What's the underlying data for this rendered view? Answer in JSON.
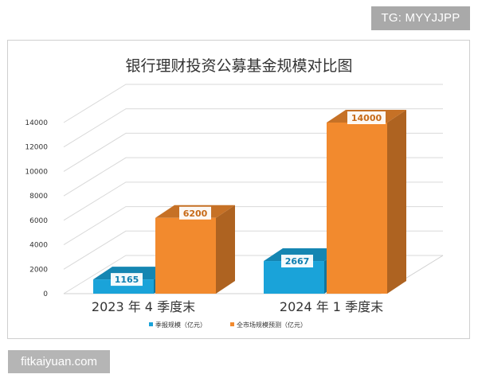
{
  "watermarks": {
    "top": "TG: MYYJJPP",
    "bottom": "fitkaiyuan.com"
  },
  "chart_data": {
    "type": "bar",
    "title": "银行理财投资公募基金规模对比图",
    "categories": [
      "2023 年 4 季度末",
      "2024 年 1 季度末"
    ],
    "series": [
      {
        "name": "季报规模（亿元）",
        "values": [
          1165,
          2667
        ],
        "color": "#1aa3d9",
        "label_color": "#0f7fb0"
      },
      {
        "name": "全市场规模预测（亿元）",
        "values": [
          6200,
          14000
        ],
        "color": "#f28a2e",
        "label_color": "#c76a18"
      }
    ],
    "data_labels": [
      [
        "1165",
        "6200"
      ],
      [
        "2667",
        "14000"
      ]
    ],
    "ylim": [
      0,
      14000
    ],
    "yticks": [
      0,
      2000,
      4000,
      6000,
      8000,
      10000,
      12000,
      14000
    ],
    "ytick_labels": [
      "0",
      "2000",
      "4000",
      "6000",
      "8000",
      "10000",
      "12000",
      "14000"
    ],
    "xlabel": "",
    "ylabel": "",
    "grid": true,
    "legend_position": "bottom"
  }
}
